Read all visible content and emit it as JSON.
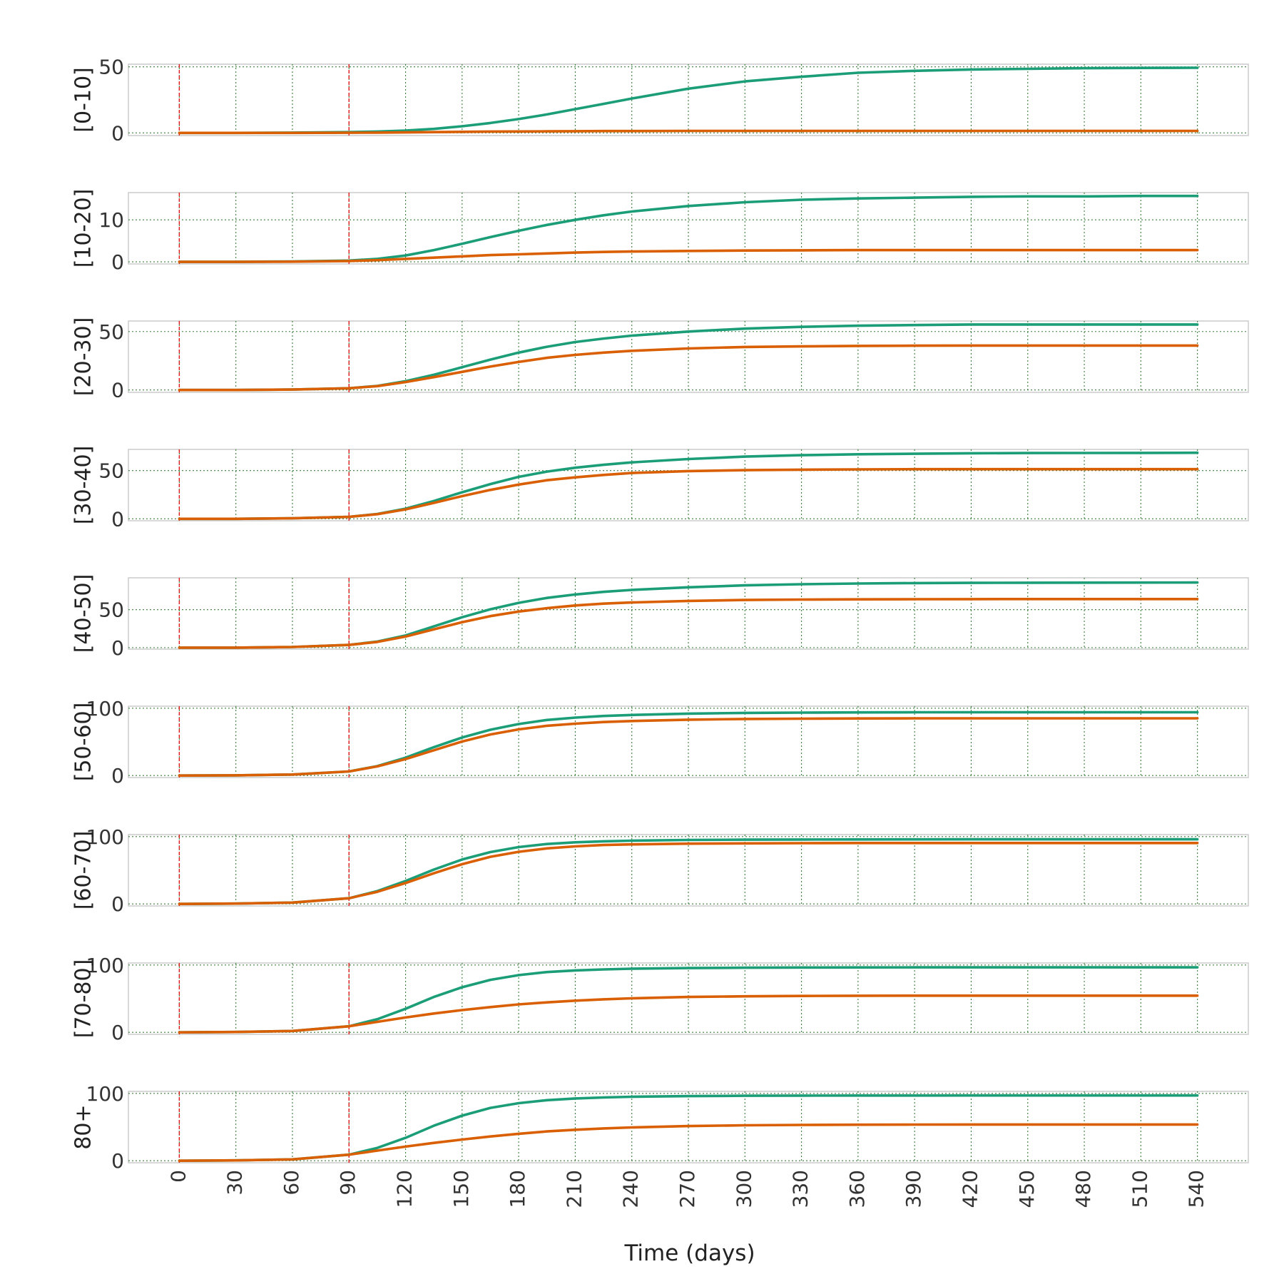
{
  "chart_data": {
    "type": "line",
    "xlabel": "Time (days)",
    "x_ticks": [
      0,
      30,
      60,
      90,
      120,
      150,
      180,
      210,
      240,
      270,
      300,
      330,
      360,
      390,
      420,
      450,
      480,
      510,
      540
    ],
    "xlim": [
      -27,
      567
    ],
    "vertical_markers": [
      0,
      90
    ],
    "grid": true,
    "colors": {
      "series_a": "#1b9e77",
      "series_b": "#d95f02",
      "markers": "#e31a1c"
    },
    "x": [
      0,
      30,
      60,
      90,
      105,
      120,
      135,
      150,
      165,
      180,
      195,
      210,
      225,
      240,
      270,
      300,
      330,
      360,
      390,
      420,
      450,
      480,
      510,
      540
    ],
    "panels": [
      {
        "label": "[0-10]",
        "yticks": [
          0,
          50
        ],
        "ylim": [
          -2,
          52
        ],
        "series": [
          {
            "values": [
              0,
              0,
              0.2,
              0.6,
              1.0,
              1.8,
              3.0,
              5.0,
              7.5,
              10.5,
              14.0,
              18.0,
              22.0,
              26.0,
              33.5,
              39.0,
              42.5,
              45.5,
              47.0,
              48.0,
              48.5,
              49.0,
              49.2,
              49.3
            ]
          },
          {
            "values": [
              0,
              0,
              0,
              0.1,
              0.2,
              0.4,
              0.6,
              0.8,
              1.0,
              1.1,
              1.2,
              1.3,
              1.4,
              1.4,
              1.5,
              1.5,
              1.5,
              1.5,
              1.5,
              1.5,
              1.5,
              1.5,
              1.5,
              1.5
            ]
          }
        ]
      },
      {
        "label": "[10-20]",
        "yticks": [
          0,
          10
        ],
        "ylim": [
          -0.5,
          16.5
        ],
        "series": [
          {
            "values": [
              0,
              0,
              0.1,
              0.3,
              0.7,
              1.5,
              2.8,
              4.3,
              5.9,
              7.4,
              8.8,
              10.0,
              11.1,
              12.0,
              13.3,
              14.2,
              14.8,
              15.1,
              15.3,
              15.5,
              15.6,
              15.6,
              15.7,
              15.7
            ]
          },
          {
            "values": [
              0,
              0,
              0.05,
              0.2,
              0.4,
              0.7,
              1.0,
              1.3,
              1.6,
              1.8,
              2.0,
              2.2,
              2.35,
              2.45,
              2.6,
              2.7,
              2.75,
              2.8,
              2.8,
              2.8,
              2.8,
              2.8,
              2.8,
              2.8
            ]
          }
        ]
      },
      {
        "label": "[20-30]",
        "yticks": [
          0,
          50
        ],
        "ylim": [
          -2,
          59
        ],
        "series": [
          {
            "values": [
              0,
              0,
              0.4,
              1.5,
              3.5,
              7.5,
              13.0,
              19.5,
              26.0,
              32.0,
              37.0,
              41.0,
              44.0,
              46.5,
              50.0,
              52.5,
              54.0,
              55.0,
              55.5,
              56.0,
              56.0,
              56.0,
              56.0,
              56.0
            ]
          },
          {
            "values": [
              0,
              0,
              0.4,
              1.5,
              3.3,
              6.8,
              11.0,
              15.5,
              20.0,
              24.0,
              27.5,
              30.0,
              32.0,
              33.5,
              35.5,
              36.8,
              37.3,
              37.7,
              37.9,
              38.0,
              38.0,
              38.0,
              38.0,
              38.0
            ]
          }
        ]
      },
      {
        "label": "[30-40]",
        "yticks": [
          0,
          50
        ],
        "ylim": [
          -2,
          72
        ],
        "series": [
          {
            "values": [
              0,
              0,
              0.5,
              2.0,
              5.0,
              10.5,
              18.5,
              27.5,
              36.0,
              43.5,
              49.0,
              53.0,
              56.0,
              58.5,
              62.0,
              64.5,
              66.0,
              67.0,
              67.5,
              68.0,
              68.2,
              68.3,
              68.4,
              68.5
            ]
          },
          {
            "values": [
              0,
              0,
              0.5,
              2.0,
              4.8,
              9.8,
              16.5,
              23.5,
              30.0,
              35.5,
              40.0,
              43.0,
              45.5,
              47.5,
              49.5,
              50.5,
              51.0,
              51.3,
              51.5,
              51.5,
              51.5,
              51.5,
              51.5,
              51.5
            ]
          }
        ]
      },
      {
        "label": "[40-50]",
        "yticks": [
          0,
          50
        ],
        "ylim": [
          -2,
          92
        ],
        "series": [
          {
            "values": [
              0,
              0,
              0.8,
              3.5,
              8.0,
              16.0,
              28.0,
              40.0,
              50.5,
              59.0,
              65.5,
              70.0,
              73.5,
              76.0,
              79.5,
              82.0,
              83.5,
              84.5,
              85.0,
              85.3,
              85.5,
              85.6,
              85.7,
              85.8
            ]
          },
          {
            "values": [
              0,
              0,
              0.8,
              3.5,
              7.5,
              14.5,
              24.0,
              33.5,
              41.5,
              47.5,
              52.0,
              55.5,
              58.0,
              59.5,
              61.5,
              62.8,
              63.3,
              63.6,
              63.8,
              63.9,
              64.0,
              64.0,
              64.0,
              64.0
            ]
          }
        ]
      },
      {
        "label": "[50-60]",
        "yticks": [
          0,
          100
        ],
        "ylim": [
          -3,
          103
        ],
        "series": [
          {
            "values": [
              0,
              0.3,
              1.5,
              6.0,
              14.0,
              26.5,
              42.0,
              56.5,
              68.0,
              76.5,
              82.5,
              86.0,
              88.5,
              90.0,
              92.0,
              93.0,
              93.5,
              93.8,
              94.0,
              94.0,
              94.0,
              94.0,
              94.0,
              94.0
            ]
          },
          {
            "values": [
              0,
              0.3,
              1.5,
              6.0,
              13.5,
              24.5,
              37.5,
              50.5,
              61.0,
              68.5,
              74.0,
              77.0,
              79.5,
              81.0,
              83.0,
              84.0,
              84.5,
              84.8,
              85.0,
              85.0,
              85.0,
              85.0,
              85.0,
              85.0
            ]
          }
        ]
      },
      {
        "label": "[60-70]",
        "yticks": [
          0,
          100
        ],
        "ylim": [
          -3,
          103
        ],
        "series": [
          {
            "values": [
              0,
              0.5,
              2.0,
              8.5,
              19.0,
              34.0,
              51.0,
              66.0,
              77.0,
              84.5,
              89.0,
              91.5,
              93.0,
              94.0,
              95.0,
              95.5,
              95.7,
              95.8,
              95.9,
              96.0,
              96.0,
              96.0,
              96.0,
              96.0
            ]
          },
          {
            "values": [
              0,
              0.5,
              2.0,
              8.5,
              18.0,
              31.0,
              45.5,
              59.0,
              70.0,
              77.5,
              82.5,
              85.5,
              87.5,
              88.5,
              89.5,
              90.0,
              90.3,
              90.5,
              90.5,
              90.5,
              90.5,
              90.5,
              90.5,
              90.5
            ]
          }
        ]
      },
      {
        "label": "[70-80]",
        "yticks": [
          0,
          100
        ],
        "ylim": [
          -3,
          103
        ],
        "series": [
          {
            "values": [
              0,
              0.5,
              2.0,
              9.0,
              19.5,
              35.0,
              52.5,
              67.0,
              78.0,
              85.0,
              89.5,
              92.0,
              93.5,
              94.5,
              95.5,
              96.0,
              96.3,
              96.4,
              96.5,
              96.5,
              96.5,
              96.5,
              96.5,
              96.5
            ]
          },
          {
            "values": [
              0,
              0.5,
              2.0,
              9.0,
              15.5,
              22.0,
              28.0,
              33.0,
              37.5,
              41.5,
              44.5,
              47.0,
              49.0,
              50.5,
              52.5,
              53.5,
              54.0,
              54.3,
              54.5,
              54.5,
              54.5,
              54.5,
              54.5,
              54.5
            ]
          }
        ]
      },
      {
        "label": "80+",
        "yticks": [
          0,
          100
        ],
        "ylim": [
          -3,
          103
        ],
        "series": [
          {
            "values": [
              0,
              0.5,
              2.0,
              9.0,
              19.0,
              34.0,
              52.0,
              67.0,
              78.5,
              85.5,
              90.0,
              92.5,
              94.0,
              95.0,
              96.0,
              96.5,
              96.7,
              96.8,
              96.9,
              97.0,
              97.0,
              97.0,
              97.0,
              97.0
            ]
          },
          {
            "values": [
              0,
              0.5,
              2.0,
              9.0,
              15.0,
              21.0,
              26.5,
              31.5,
              36.0,
              40.0,
              43.5,
              46.0,
              48.0,
              49.5,
              51.5,
              52.7,
              53.2,
              53.5,
              53.7,
              53.8,
              53.8,
              53.8,
              53.8,
              53.8
            ]
          }
        ]
      }
    ]
  }
}
